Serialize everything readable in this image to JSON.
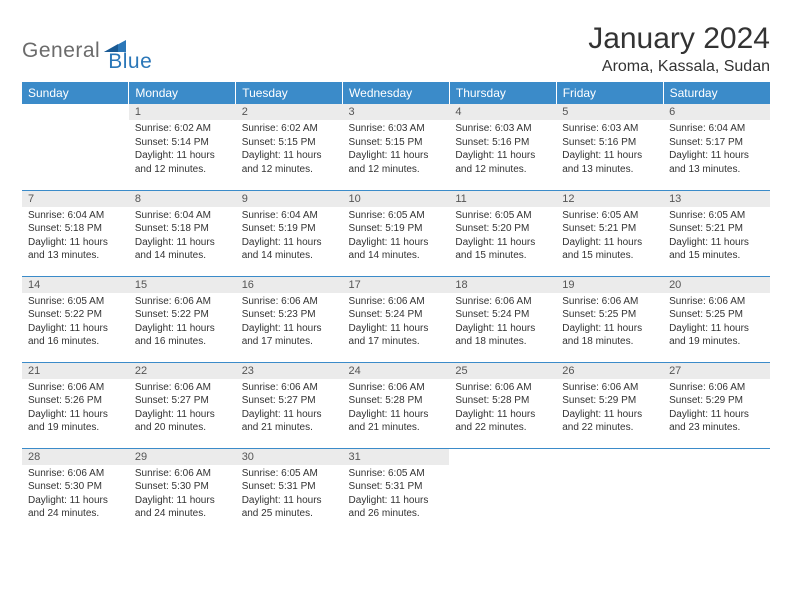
{
  "logo": {
    "part1": "General",
    "part2": "Blue"
  },
  "title": "January 2024",
  "location": "Aroma, Kassala, Sudan",
  "colors": {
    "header_bg": "#3b8bc9",
    "header_text": "#ffffff",
    "daynum_bg": "#ebebeb",
    "daynum_text": "#555555",
    "border": "#3b8bc9",
    "logo_gray": "#6b6b6b",
    "logo_blue": "#2b77b8",
    "body_text": "#333333",
    "background": "#ffffff"
  },
  "typography": {
    "title_fontsize": 30,
    "location_fontsize": 16,
    "header_fontsize": 12,
    "daynum_fontsize": 11,
    "daytext_fontsize": 10
  },
  "weekdays": [
    "Sunday",
    "Monday",
    "Tuesday",
    "Wednesday",
    "Thursday",
    "Friday",
    "Saturday"
  ],
  "start_offset": 1,
  "days": [
    {
      "n": 1,
      "sunrise": "6:02 AM",
      "sunset": "5:14 PM",
      "daylight": "11 hours and 12 minutes."
    },
    {
      "n": 2,
      "sunrise": "6:02 AM",
      "sunset": "5:15 PM",
      "daylight": "11 hours and 12 minutes."
    },
    {
      "n": 3,
      "sunrise": "6:03 AM",
      "sunset": "5:15 PM",
      "daylight": "11 hours and 12 minutes."
    },
    {
      "n": 4,
      "sunrise": "6:03 AM",
      "sunset": "5:16 PM",
      "daylight": "11 hours and 12 minutes."
    },
    {
      "n": 5,
      "sunrise": "6:03 AM",
      "sunset": "5:16 PM",
      "daylight": "11 hours and 13 minutes."
    },
    {
      "n": 6,
      "sunrise": "6:04 AM",
      "sunset": "5:17 PM",
      "daylight": "11 hours and 13 minutes."
    },
    {
      "n": 7,
      "sunrise": "6:04 AM",
      "sunset": "5:18 PM",
      "daylight": "11 hours and 13 minutes."
    },
    {
      "n": 8,
      "sunrise": "6:04 AM",
      "sunset": "5:18 PM",
      "daylight": "11 hours and 14 minutes."
    },
    {
      "n": 9,
      "sunrise": "6:04 AM",
      "sunset": "5:19 PM",
      "daylight": "11 hours and 14 minutes."
    },
    {
      "n": 10,
      "sunrise": "6:05 AM",
      "sunset": "5:19 PM",
      "daylight": "11 hours and 14 minutes."
    },
    {
      "n": 11,
      "sunrise": "6:05 AM",
      "sunset": "5:20 PM",
      "daylight": "11 hours and 15 minutes."
    },
    {
      "n": 12,
      "sunrise": "6:05 AM",
      "sunset": "5:21 PM",
      "daylight": "11 hours and 15 minutes."
    },
    {
      "n": 13,
      "sunrise": "6:05 AM",
      "sunset": "5:21 PM",
      "daylight": "11 hours and 15 minutes."
    },
    {
      "n": 14,
      "sunrise": "6:05 AM",
      "sunset": "5:22 PM",
      "daylight": "11 hours and 16 minutes."
    },
    {
      "n": 15,
      "sunrise": "6:06 AM",
      "sunset": "5:22 PM",
      "daylight": "11 hours and 16 minutes."
    },
    {
      "n": 16,
      "sunrise": "6:06 AM",
      "sunset": "5:23 PM",
      "daylight": "11 hours and 17 minutes."
    },
    {
      "n": 17,
      "sunrise": "6:06 AM",
      "sunset": "5:24 PM",
      "daylight": "11 hours and 17 minutes."
    },
    {
      "n": 18,
      "sunrise": "6:06 AM",
      "sunset": "5:24 PM",
      "daylight": "11 hours and 18 minutes."
    },
    {
      "n": 19,
      "sunrise": "6:06 AM",
      "sunset": "5:25 PM",
      "daylight": "11 hours and 18 minutes."
    },
    {
      "n": 20,
      "sunrise": "6:06 AM",
      "sunset": "5:25 PM",
      "daylight": "11 hours and 19 minutes."
    },
    {
      "n": 21,
      "sunrise": "6:06 AM",
      "sunset": "5:26 PM",
      "daylight": "11 hours and 19 minutes."
    },
    {
      "n": 22,
      "sunrise": "6:06 AM",
      "sunset": "5:27 PM",
      "daylight": "11 hours and 20 minutes."
    },
    {
      "n": 23,
      "sunrise": "6:06 AM",
      "sunset": "5:27 PM",
      "daylight": "11 hours and 21 minutes."
    },
    {
      "n": 24,
      "sunrise": "6:06 AM",
      "sunset": "5:28 PM",
      "daylight": "11 hours and 21 minutes."
    },
    {
      "n": 25,
      "sunrise": "6:06 AM",
      "sunset": "5:28 PM",
      "daylight": "11 hours and 22 minutes."
    },
    {
      "n": 26,
      "sunrise": "6:06 AM",
      "sunset": "5:29 PM",
      "daylight": "11 hours and 22 minutes."
    },
    {
      "n": 27,
      "sunrise": "6:06 AM",
      "sunset": "5:29 PM",
      "daylight": "11 hours and 23 minutes."
    },
    {
      "n": 28,
      "sunrise": "6:06 AM",
      "sunset": "5:30 PM",
      "daylight": "11 hours and 24 minutes."
    },
    {
      "n": 29,
      "sunrise": "6:06 AM",
      "sunset": "5:30 PM",
      "daylight": "11 hours and 24 minutes."
    },
    {
      "n": 30,
      "sunrise": "6:05 AM",
      "sunset": "5:31 PM",
      "daylight": "11 hours and 25 minutes."
    },
    {
      "n": 31,
      "sunrise": "6:05 AM",
      "sunset": "5:31 PM",
      "daylight": "11 hours and 26 minutes."
    }
  ],
  "labels": {
    "sunrise": "Sunrise:",
    "sunset": "Sunset:",
    "daylight": "Daylight:"
  }
}
